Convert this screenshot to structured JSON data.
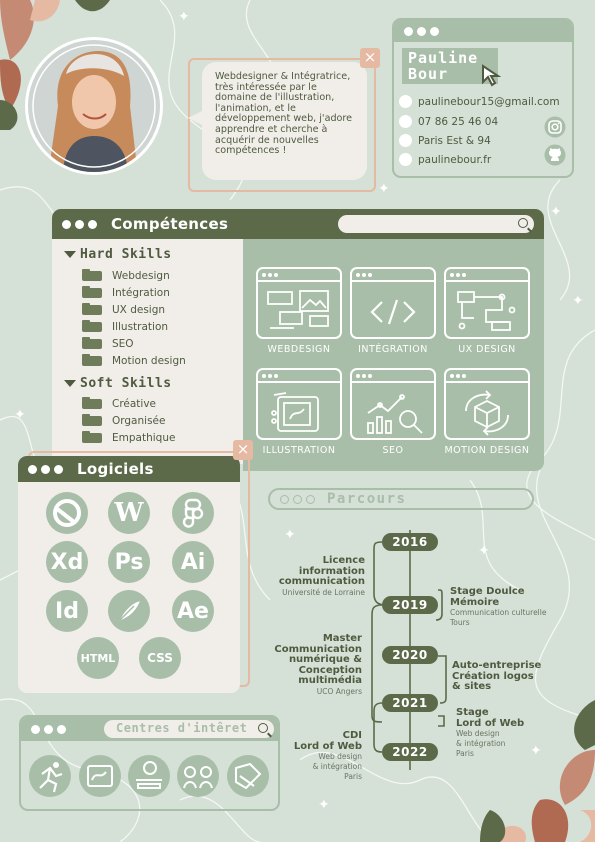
{
  "profile": {
    "name_line1": "Pauline",
    "name_line2": "Bour",
    "bio": "Webdesigner & Intégratrice, très intéressée par le domaine de l'illustration, l'animation, et le développement web, j'adore apprendre et cherche à acquérir de nouvelles compétences !",
    "email": "paulinebour15@gmail.com",
    "phone": "07 86 25 46 04",
    "location": "Paris Est & 94",
    "website": "paulinebour.fr",
    "close": "×"
  },
  "skills": {
    "title": "Compétences",
    "hard_title": "Hard Skills",
    "hard": [
      "Webdesign",
      "Intégration",
      "UX design",
      "Illustration",
      "SEO",
      "Motion design"
    ],
    "soft_title": "Soft Skills",
    "soft": [
      "Créative",
      "Organisée",
      "Empathique"
    ],
    "cards": [
      "WEBDESIGN",
      "INTÉGRATION",
      "UX DESIGN",
      "ILLUSTRATION",
      "SEO",
      "MOTION DESIGN"
    ]
  },
  "software": {
    "title": "Logiciels",
    "close": "×",
    "logos": [
      "Xd",
      "Ps",
      "Ai",
      "Id",
      "Ae",
      "HTML",
      "CSS"
    ],
    "wordpress": "W"
  },
  "interests": {
    "title": "Centres d'intêret"
  },
  "timeline": {
    "title": "Parcours",
    "years": [
      "2016",
      "2019",
      "2020",
      "2021",
      "2022"
    ],
    "left": [
      {
        "lines": [
          "Licence",
          "information",
          "communication"
        ],
        "sub": [
          "Université de Lorraine"
        ]
      },
      {
        "lines": [
          "Master",
          "Communication",
          "numérique &",
          "Conception",
          "multimédia"
        ],
        "sub": [
          "UCO Angers"
        ]
      },
      {
        "lines": [
          "CDI",
          "Lord of Web"
        ],
        "sub": [
          "Web design",
          "& intégration",
          "Paris"
        ]
      }
    ],
    "right": [
      {
        "lines": [
          "Stage Doulce",
          "Mémoire"
        ],
        "sub": [
          "Communication culturelle",
          "Tours"
        ]
      },
      {
        "lines": [
          "Auto-entreprise",
          "Création logos",
          "& sites"
        ],
        "sub": []
      },
      {
        "lines": [
          "Stage",
          "Lord of Web"
        ],
        "sub": [
          "Web design",
          "& intégration",
          "Paris"
        ]
      }
    ]
  },
  "colors": {
    "bg": "#d5e0d6",
    "dark": "#5d6a4a",
    "sage": "#a8bea9",
    "cream": "#f1eeea",
    "peach": "#e6b9a2"
  }
}
